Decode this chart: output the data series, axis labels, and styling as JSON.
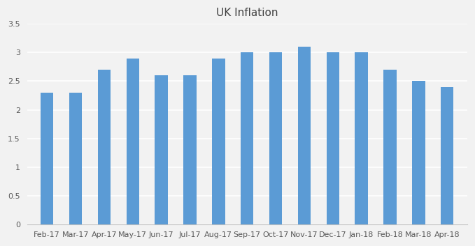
{
  "title": "UK Inflation",
  "categories": [
    "Feb-17",
    "Mar-17",
    "Apr-17",
    "May-17",
    "Jun-17",
    "Jul-17",
    "Aug-17",
    "Sep-17",
    "Oct-17",
    "Nov-17",
    "Dec-17",
    "Jan-18",
    "Feb-18",
    "Mar-18",
    "Apr-18"
  ],
  "values": [
    2.3,
    2.3,
    2.7,
    2.9,
    2.6,
    2.6,
    2.9,
    3.0,
    3.0,
    3.1,
    3.0,
    3.0,
    2.7,
    2.5,
    2.4
  ],
  "bar_color": "#5b9bd5",
  "ylim": [
    0,
    3.5
  ],
  "yticks": [
    0,
    0.5,
    1.0,
    1.5,
    2.0,
    2.5,
    3.0,
    3.5
  ],
  "background_color": "#f2f2f2",
  "title_fontsize": 11,
  "tick_fontsize": 8,
  "bar_width": 0.45,
  "grid_color": "#ffffff",
  "grid_linewidth": 1.2
}
